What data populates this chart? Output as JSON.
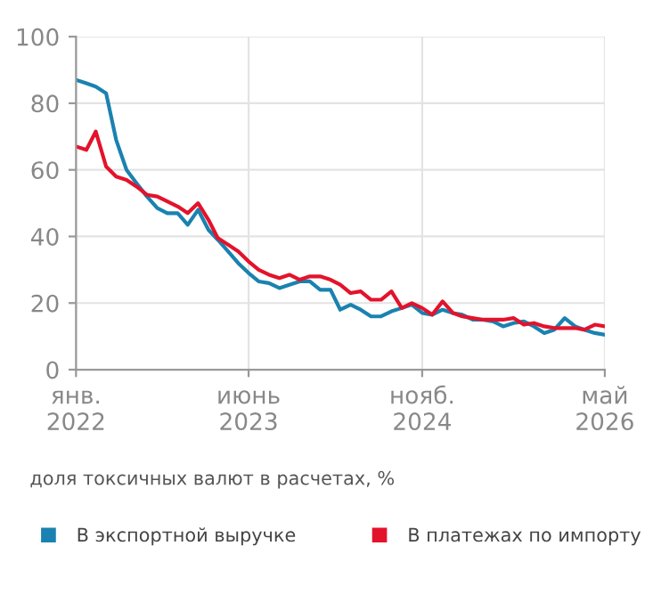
{
  "chart_data": {
    "type": "line",
    "x": [
      "2022-01",
      "2022-02",
      "2022-03",
      "2022-04",
      "2022-05",
      "2022-06",
      "2022-07",
      "2022-08",
      "2022-09",
      "2022-10",
      "2022-11",
      "2022-12",
      "2023-01",
      "2023-02",
      "2023-03",
      "2023-04",
      "2023-05",
      "2023-06",
      "2023-07",
      "2023-08",
      "2023-09",
      "2023-10",
      "2023-11",
      "2023-12",
      "2024-01",
      "2024-02",
      "2024-03",
      "2024-04",
      "2024-05",
      "2024-06",
      "2024-07",
      "2024-08",
      "2024-09",
      "2024-10",
      "2024-11",
      "2024-12",
      "2025-01",
      "2025-02",
      "2025-03",
      "2025-04",
      "2025-05",
      "2025-06",
      "2025-07",
      "2025-08",
      "2025-09",
      "2025-10",
      "2025-11",
      "2025-12",
      "2026-01",
      "2026-02",
      "2026-03",
      "2026-04",
      "2026-05"
    ],
    "series": [
      {
        "name": "В экспортной выручке",
        "color": "#1a82b0",
        "values": [
          87,
          86,
          85,
          83,
          69,
          60,
          56,
          52,
          48.5,
          47,
          47,
          43.5,
          48,
          42,
          39,
          35.5,
          32,
          29,
          26.5,
          26,
          24.5,
          25.5,
          26.5,
          26.5,
          24,
          24,
          18,
          19.5,
          18,
          16,
          16,
          17.5,
          18.5,
          19.5,
          17,
          16.5,
          18,
          17,
          16.5,
          15,
          15,
          14.5,
          13,
          14,
          14.5,
          13,
          11,
          12,
          15.5,
          13,
          12,
          11,
          10.5
        ]
      },
      {
        "name": "В платежах по импорту",
        "color": "#e3132b",
        "values": [
          67,
          66,
          71.5,
          61,
          58,
          57,
          55,
          52.5,
          52,
          50.5,
          49,
          47,
          50,
          45,
          39.5,
          37.5,
          35.5,
          32.5,
          30,
          28.5,
          27.5,
          28.5,
          27,
          28,
          28,
          27,
          25.5,
          23,
          23.5,
          21,
          21,
          23.5,
          18.5,
          20,
          18.5,
          16.5,
          20.5,
          17,
          16,
          15.5,
          15,
          15,
          15,
          15.5,
          13.5,
          14,
          13,
          12.5,
          12.5,
          12.5,
          12,
          13.5,
          13
        ]
      }
    ],
    "xlim": [
      "2022-01",
      "2026-05"
    ],
    "xticks": [
      {
        "value": "2022-01",
        "label": "янв.\n2022"
      },
      {
        "value": "2023-06",
        "label": "июнь\n2023"
      },
      {
        "value": "2024-11",
        "label": "нояб.\n2024"
      },
      {
        "value": "2026-05",
        "label": "май\n2026"
      }
    ],
    "ylim": [
      0,
      100
    ],
    "yticks": [
      0,
      20,
      40,
      60,
      80,
      100
    ],
    "grid": true,
    "legend": "bottom",
    "marker": "none",
    "line_style": "solid",
    "annotations": [
      "доля токсичных валют в расчетах, %"
    ]
  }
}
